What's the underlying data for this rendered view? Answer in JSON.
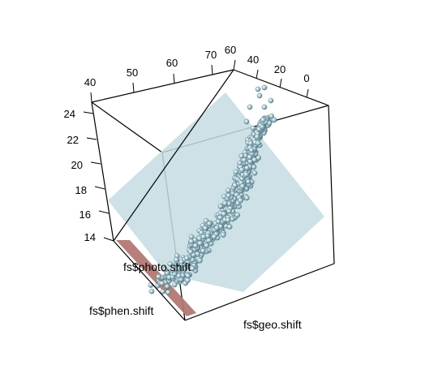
{
  "chart_data": {
    "type": "scatter",
    "projection": "3d",
    "title": "",
    "axes": {
      "x": {
        "label": "fs$photo.shift",
        "ticks": [
          "40",
          "50",
          "60",
          "70"
        ],
        "range": [
          40,
          73
        ]
      },
      "y": {
        "label": "fs$geo.shift",
        "ticks": [
          "60",
          "40",
          "20",
          "0"
        ],
        "range": [
          -5,
          63
        ]
      },
      "z": {
        "label": "fs$phen.shift",
        "ticks": [
          "14",
          "16",
          "18",
          "20",
          "22",
          "24"
        ],
        "range": [
          13,
          25
        ]
      }
    },
    "surfaces": [
      {
        "name": "",
        "kind": "fitted-plane",
        "color": "#c5dce3",
        "opacity": 0.85
      },
      {
        "name": "",
        "kind": "plane",
        "color": "#b37874",
        "opacity": 0.95
      }
    ],
    "points": {
      "count_approx": 900,
      "color": "#a9cbd6",
      "edge_color": "#4d6f7a",
      "distribution": "dense curved band from low fs$phen.shift near the front-left corner rising to high values near the back-right corner"
    },
    "box": true,
    "grid": false,
    "legend": "none"
  }
}
